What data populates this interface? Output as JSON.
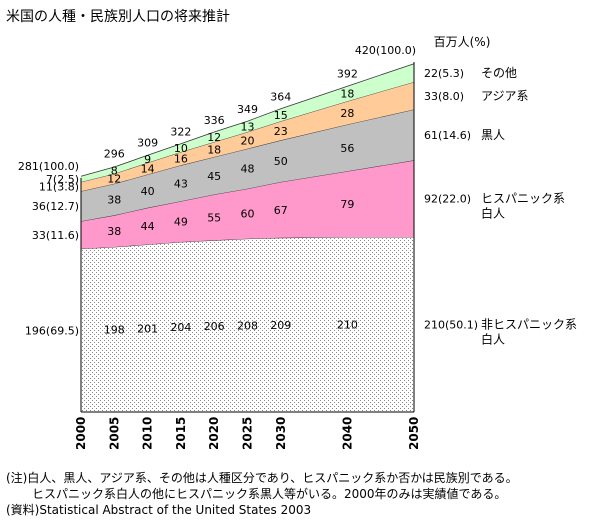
{
  "title": "米国の人種・民族別人口の将来推計",
  "unit_label": "百万人(%)",
  "notes": [
    "(注)白人、黒人、アジア系、その他は人種区分であり、ヒスパニック系か否かは民族別である。",
    "ヒスパニック系白人の他にヒスパニック系黒人等がいる。2000年のみは実績値である。",
    "(資料)Statistical Abstract of the United States 2003"
  ],
  "chart_data": {
    "type": "area",
    "stacked": true,
    "x": [
      2000,
      2005,
      2010,
      2015,
      2020,
      2025,
      2030,
      2040,
      2050
    ],
    "x_tick_labels": [
      "2000",
      "2005",
      "2010",
      "2015",
      "2020",
      "2025",
      "2030",
      "2040",
      "2050"
    ],
    "ylim": [
      0,
      420
    ],
    "series": [
      {
        "name": "非ヒスパニック系白人",
        "color": "#ffffff",
        "pattern": "dots",
        "values": [
          196,
          198,
          201,
          204,
          206,
          208,
          209,
          210,
          210
        ],
        "point_labels": [
          "",
          "198",
          "201",
          "204",
          "206",
          "208",
          "209",
          "210",
          ""
        ],
        "start_label": "196(69.5)",
        "end_label": "210(50.1)",
        "legend_lines": [
          "非ヒスパニック系",
          "白人"
        ]
      },
      {
        "name": "ヒスパニック系白人",
        "color": "#ff99cc",
        "values": [
          33,
          38,
          44,
          49,
          55,
          60,
          67,
          79,
          92
        ],
        "point_labels": [
          "",
          "38",
          "44",
          "49",
          "55",
          "60",
          "67",
          "79",
          ""
        ],
        "start_label": "33(11.6)",
        "end_label": "92(22.0)",
        "legend_lines": [
          "ヒスパニック系",
          "白人"
        ]
      },
      {
        "name": "黒人",
        "color": "#c0c0c0",
        "values": [
          36,
          38,
          40,
          43,
          45,
          48,
          50,
          56,
          61
        ],
        "point_labels": [
          "",
          "38",
          "40",
          "43",
          "45",
          "48",
          "50",
          "56",
          ""
        ],
        "start_label": "36(12.7)",
        "end_label": "61(14.6)",
        "legend_lines": [
          "黒人"
        ]
      },
      {
        "name": "アジア系",
        "color": "#ffcc99",
        "values": [
          11,
          12,
          14,
          16,
          18,
          20,
          23,
          28,
          33
        ],
        "point_labels": [
          "",
          "12",
          "14",
          "16",
          "18",
          "20",
          "23",
          "28",
          ""
        ],
        "start_label": "11(3.8)",
        "end_label": "33(8.0)",
        "legend_lines": [
          "アジア系"
        ]
      },
      {
        "name": "その他",
        "color": "#ccffcc",
        "values": [
          7,
          8,
          9,
          10,
          12,
          13,
          15,
          18,
          22
        ],
        "point_labels": [
          "",
          "8",
          "9",
          "10",
          "12",
          "13",
          "15",
          "18",
          ""
        ],
        "start_label": "7(2.5)",
        "end_label": "22(5.3)",
        "legend_lines": [
          "その他"
        ]
      }
    ],
    "totals": {
      "values": [
        281,
        296,
        309,
        322,
        336,
        349,
        364,
        392,
        420
      ],
      "labels": [
        "281(100.0)",
        "296",
        "309",
        "322",
        "336",
        "349",
        "364",
        "392",
        "420(100.0)"
      ]
    }
  }
}
